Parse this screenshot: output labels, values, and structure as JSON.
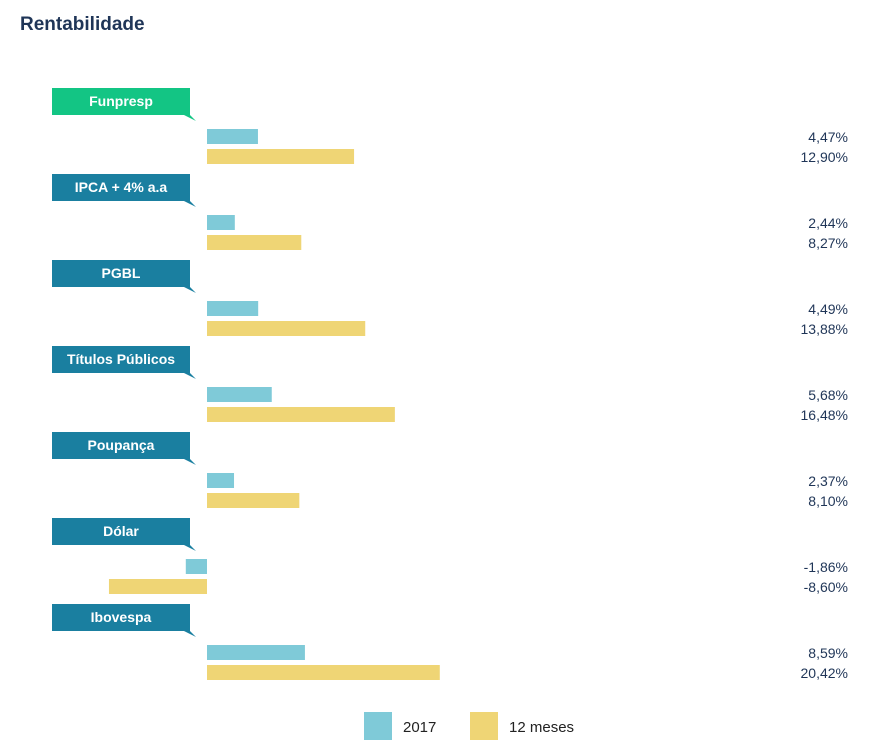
{
  "chart_data": {
    "type": "bar",
    "orientation": "horizontal",
    "title": "Rentabilidade",
    "categories": [
      "Funpresp",
      "IPCA + 4% a.a",
      "PGBL",
      "Títulos Públicos",
      "Poupança",
      "Dólar",
      "Ibovespa"
    ],
    "highlight_category": "Funpresp",
    "series": [
      {
        "name": "2017",
        "color": "#7fcad8",
        "values": [
          4.47,
          2.44,
          4.49,
          5.68,
          2.37,
          -1.86,
          8.59
        ],
        "labels": [
          "4,47%",
          "2,44%",
          "4,49%",
          "5,68%",
          "2,37%",
          "-1,86%",
          "8,59%"
        ]
      },
      {
        "name": "12 meses",
        "color": "#efd575",
        "values": [
          12.9,
          8.27,
          13.88,
          16.48,
          8.1,
          -8.6,
          20.42
        ],
        "labels": [
          "12,90%",
          "8,27%",
          "13,88%",
          "16,48%",
          "8,10%",
          "-8,60%",
          "20,42%"
        ]
      }
    ],
    "legend": "bottom",
    "grid": false,
    "colors": {
      "highlight_tag": "#13c584",
      "tag": "#1a7fa0",
      "title": "#1f3557"
    }
  }
}
